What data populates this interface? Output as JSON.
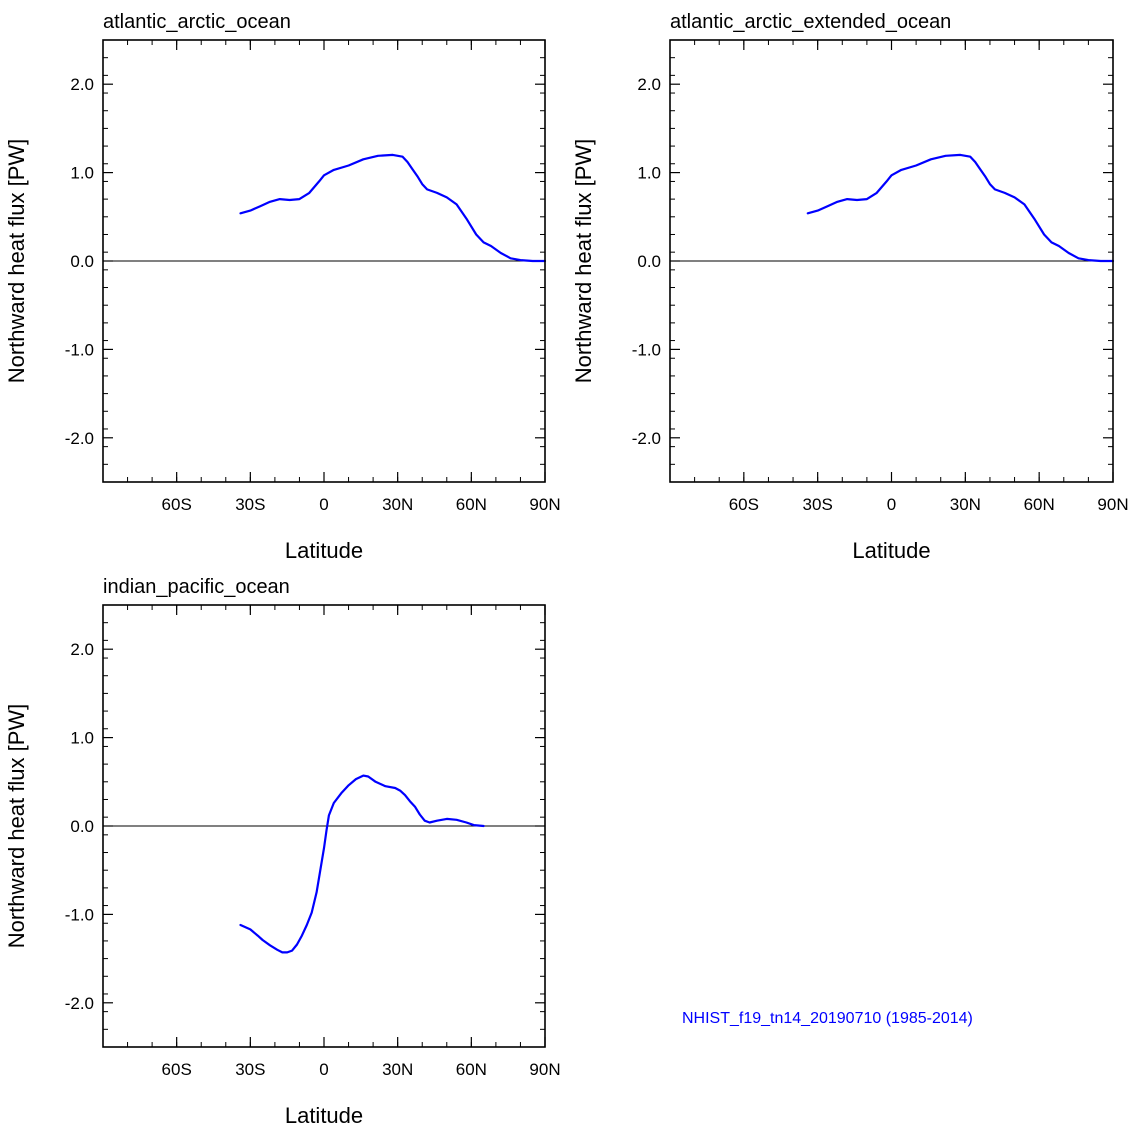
{
  "caption": "NHIST_f19_tn14_20190710 (1985-2014)",
  "colors": {
    "series": "#0000ff",
    "axis": "#000000",
    "caption": "#0000ff"
  },
  "chart_data": [
    {
      "type": "line",
      "title": "atlantic_arctic_ocean",
      "xlabel": "Latitude",
      "ylabel": "Northward heat flux [PW]",
      "xlim": [
        -90,
        90
      ],
      "ylim": [
        -2.5,
        2.5
      ],
      "xticks": [
        -60,
        -30,
        0,
        30,
        60,
        90
      ],
      "xticklabels": [
        "60S",
        "30S",
        "0",
        "30N",
        "60N",
        "90N"
      ],
      "yticks": [
        2,
        1,
        0,
        -1,
        -2
      ],
      "yticklabels": [
        "2.0",
        "1.0",
        "0.0",
        "-1.0",
        "-2.0"
      ],
      "zero_line": true,
      "series": [
        {
          "name": "northward heat flux",
          "x": [
            -34,
            -30,
            -26,
            -22,
            -18,
            -14,
            -10,
            -6,
            -2,
            0,
            4,
            10,
            16,
            22,
            28,
            32,
            34,
            36,
            38,
            40,
            42,
            46,
            50,
            54,
            58,
            62,
            65,
            68,
            72,
            76,
            80,
            85,
            90
          ],
          "y": [
            0.54,
            0.57,
            0.62,
            0.67,
            0.7,
            0.69,
            0.7,
            0.77,
            0.9,
            0.97,
            1.03,
            1.08,
            1.15,
            1.19,
            1.2,
            1.18,
            1.12,
            1.04,
            0.96,
            0.87,
            0.81,
            0.77,
            0.72,
            0.64,
            0.48,
            0.3,
            0.21,
            0.17,
            0.09,
            0.03,
            0.01,
            0.0,
            0.0
          ]
        }
      ]
    },
    {
      "type": "line",
      "title": "atlantic_arctic_extended_ocean",
      "xlabel": "Latitude",
      "ylabel": "Northward heat flux [PW]",
      "xlim": [
        -90,
        90
      ],
      "ylim": [
        -2.5,
        2.5
      ],
      "xticks": [
        -60,
        -30,
        0,
        30,
        60,
        90
      ],
      "xticklabels": [
        "60S",
        "30S",
        "0",
        "30N",
        "60N",
        "90N"
      ],
      "yticks": [
        2,
        1,
        0,
        -1,
        -2
      ],
      "yticklabels": [
        "2.0",
        "1.0",
        "0.0",
        "-1.0",
        "-2.0"
      ],
      "zero_line": true,
      "series": [
        {
          "name": "northward heat flux",
          "x": [
            -34,
            -30,
            -26,
            -22,
            -18,
            -14,
            -10,
            -6,
            -2,
            0,
            4,
            10,
            16,
            22,
            28,
            32,
            34,
            36,
            38,
            40,
            42,
            46,
            50,
            54,
            58,
            62,
            65,
            68,
            72,
            76,
            80,
            85,
            90
          ],
          "y": [
            0.54,
            0.57,
            0.62,
            0.67,
            0.7,
            0.69,
            0.7,
            0.77,
            0.9,
            0.97,
            1.03,
            1.08,
            1.15,
            1.19,
            1.2,
            1.18,
            1.12,
            1.04,
            0.96,
            0.87,
            0.81,
            0.77,
            0.72,
            0.64,
            0.48,
            0.3,
            0.21,
            0.17,
            0.09,
            0.03,
            0.01,
            0.0,
            0.0
          ]
        }
      ]
    },
    {
      "type": "line",
      "title": "indian_pacific_ocean",
      "xlabel": "Latitude",
      "ylabel": "Northward heat flux [PW]",
      "xlim": [
        -90,
        90
      ],
      "ylim": [
        -2.5,
        2.5
      ],
      "xticks": [
        -60,
        -30,
        0,
        30,
        60,
        90
      ],
      "xticklabels": [
        "60S",
        "30S",
        "0",
        "30N",
        "60N",
        "90N"
      ],
      "yticks": [
        2,
        1,
        0,
        -1,
        -2
      ],
      "yticklabels": [
        "2.0",
        "1.0",
        "0.0",
        "-1.0",
        "-2.0"
      ],
      "zero_line": true,
      "series": [
        {
          "name": "northward heat flux",
          "x": [
            -34,
            -30,
            -27,
            -25,
            -22,
            -19,
            -17,
            -15,
            -13,
            -11,
            -9,
            -7,
            -5,
            -3,
            -1.5,
            0,
            1,
            2,
            4,
            7,
            10,
            13,
            16,
            18,
            21,
            25,
            29,
            31,
            33,
            35,
            37,
            39,
            41,
            43,
            46,
            50,
            54,
            58,
            61,
            65
          ],
          "y": [
            -1.12,
            -1.17,
            -1.24,
            -1.29,
            -1.35,
            -1.4,
            -1.43,
            -1.43,
            -1.41,
            -1.34,
            -1.24,
            -1.12,
            -0.98,
            -0.75,
            -0.5,
            -0.25,
            -0.05,
            0.12,
            0.26,
            0.37,
            0.46,
            0.53,
            0.57,
            0.56,
            0.5,
            0.45,
            0.43,
            0.4,
            0.35,
            0.28,
            0.22,
            0.13,
            0.06,
            0.04,
            0.06,
            0.08,
            0.07,
            0.04,
            0.01,
            0.0
          ]
        }
      ]
    }
  ]
}
